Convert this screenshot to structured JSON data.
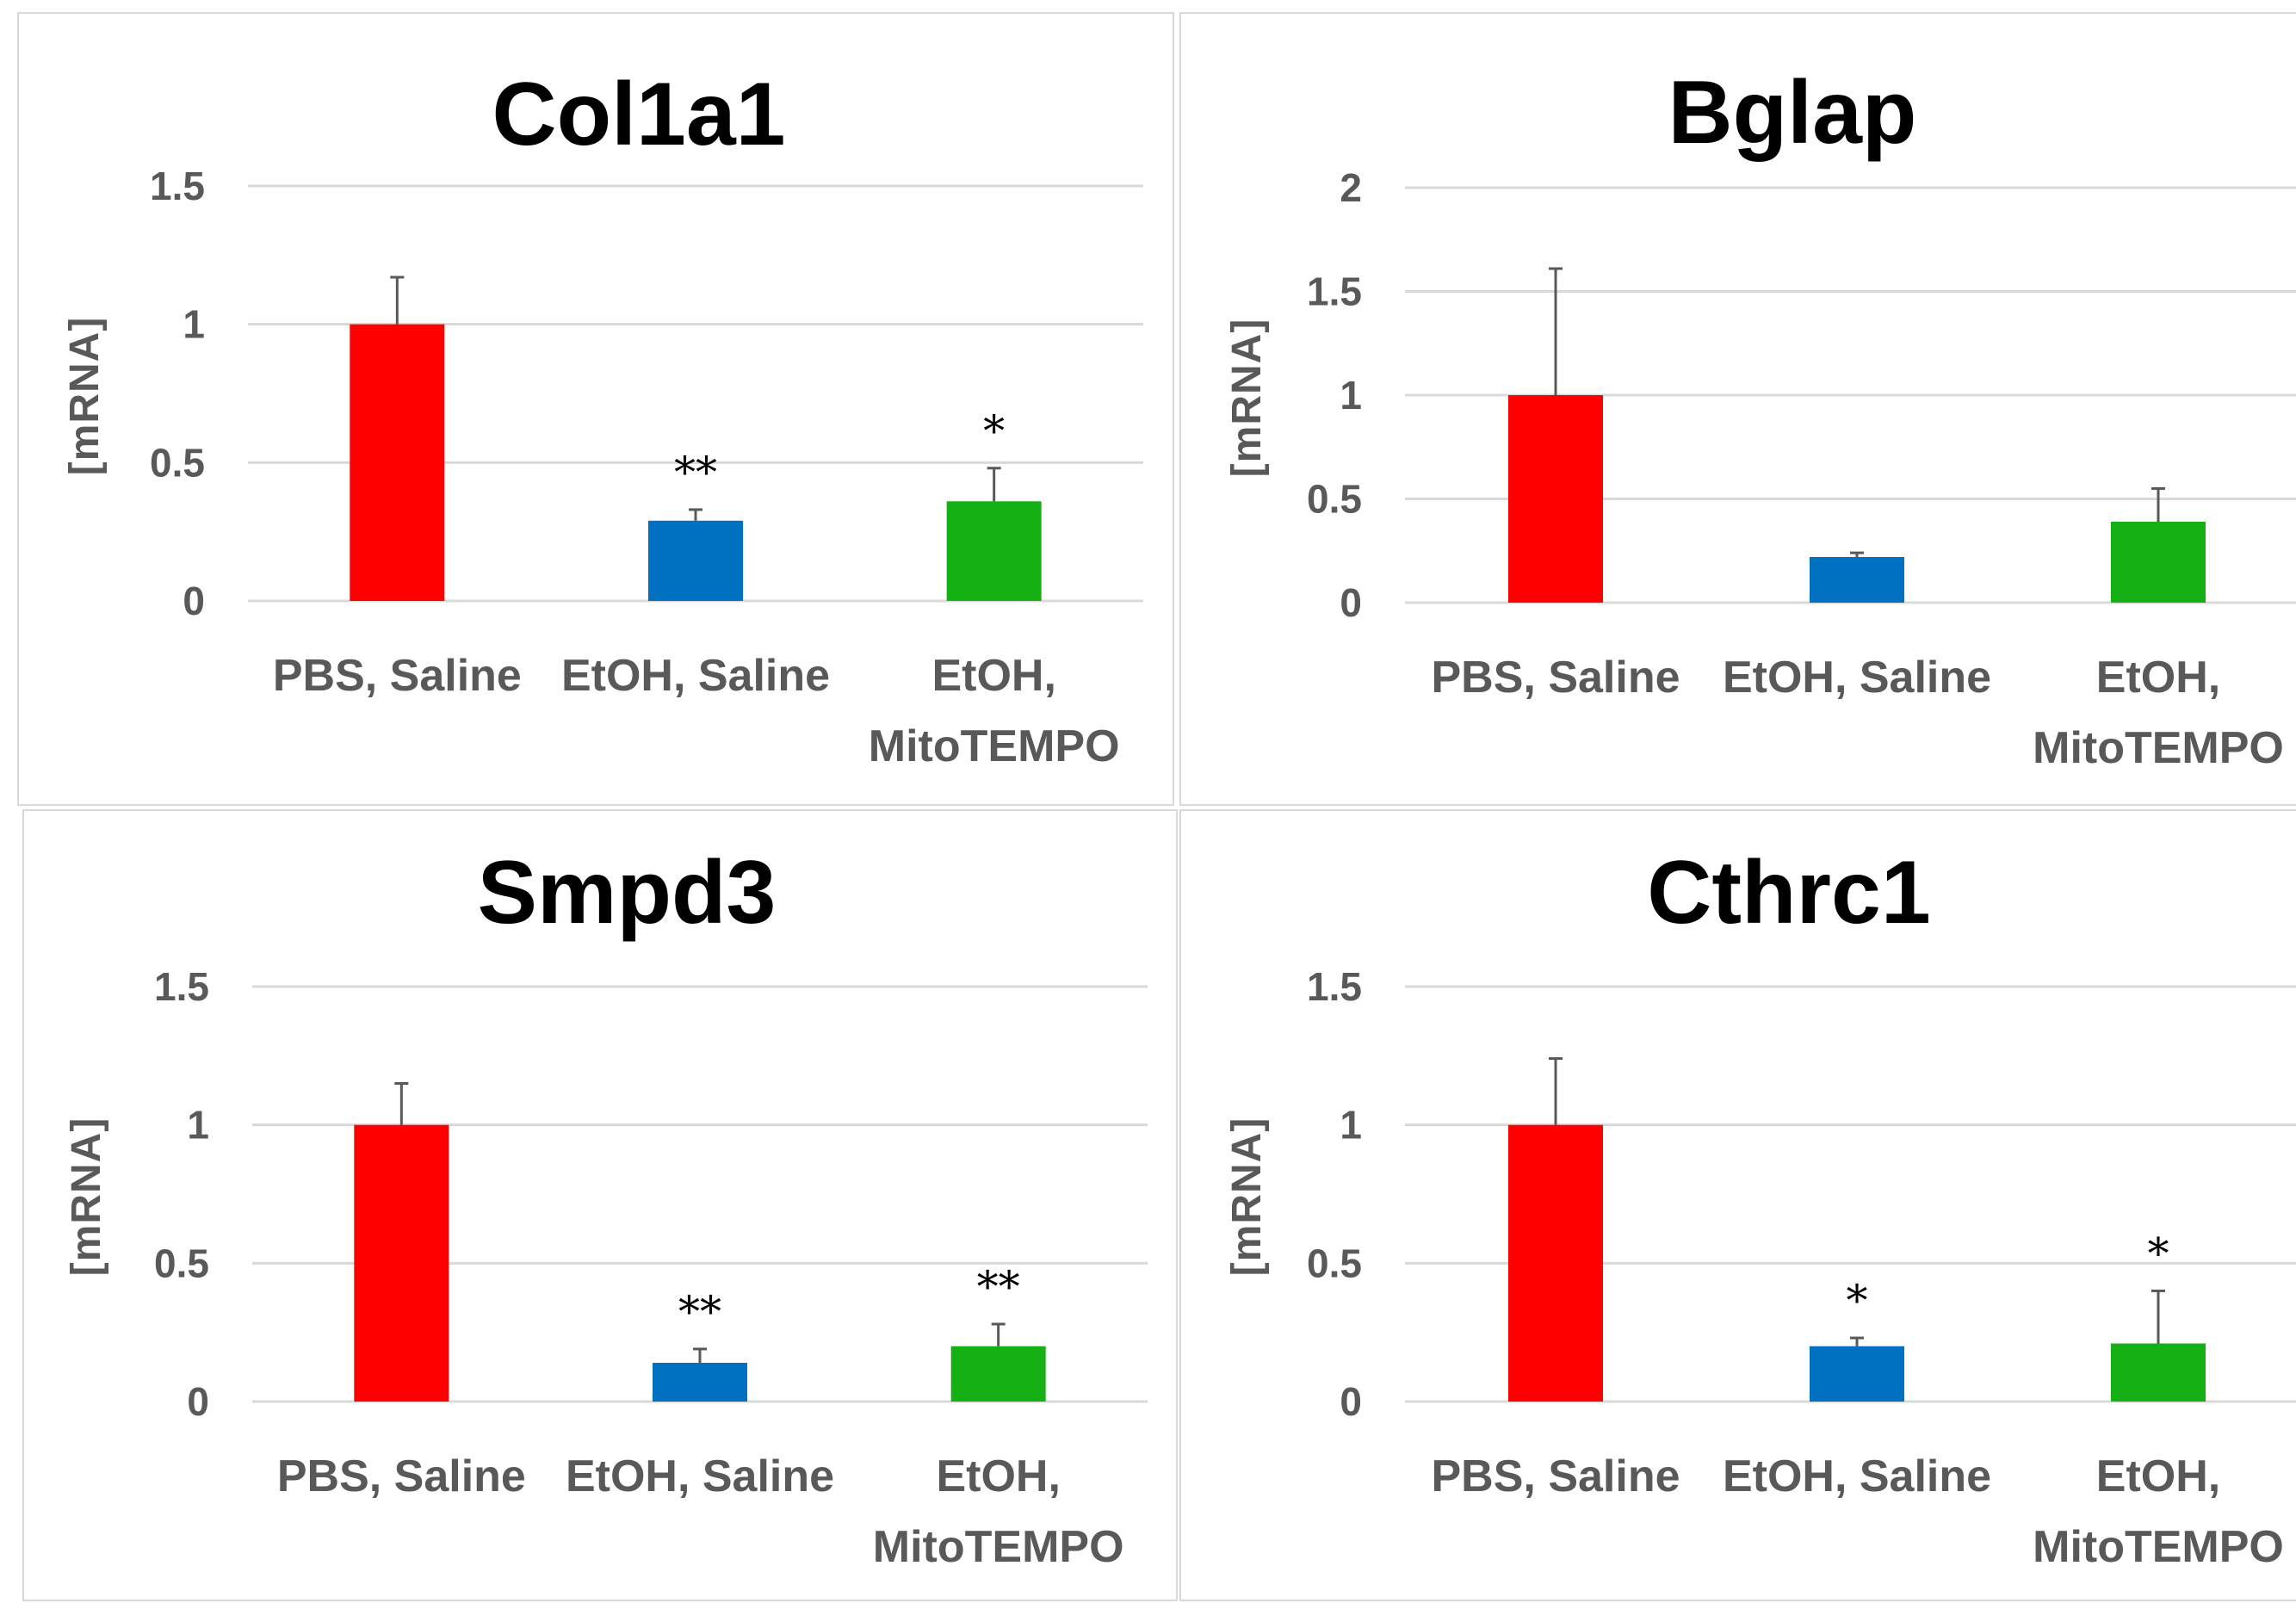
{
  "chart_data": [
    {
      "type": "bar",
      "title": "Col1a1",
      "ylabel": "[mRNA]",
      "xlabel": "",
      "categories": [
        "PBS, Saline",
        "EtOH, Saline",
        "EtOH, MitoTEMPO"
      ],
      "values": [
        1.0,
        0.29,
        0.36
      ],
      "errors": [
        0.17,
        0.04,
        0.12
      ],
      "significance": [
        "",
        "**",
        "*"
      ],
      "colors": [
        "#ff0000",
        "#0070c0",
        "#14b014"
      ],
      "ylim": [
        0,
        1.5
      ],
      "yticks": [
        "0",
        "0.5",
        "1",
        "1.5"
      ],
      "grid": true
    },
    {
      "type": "bar",
      "title": "Bglap",
      "ylabel": "[mRNA]",
      "xlabel": "",
      "categories": [
        "PBS, Saline",
        "EtOH, Saline",
        "EtOH, MitoTEMPO"
      ],
      "values": [
        1.0,
        0.22,
        0.39
      ],
      "errors": [
        0.61,
        0.02,
        0.16
      ],
      "significance": [
        "",
        "",
        ""
      ],
      "colors": [
        "#ff0000",
        "#0070c0",
        "#14b014"
      ],
      "ylim": [
        0,
        2
      ],
      "yticks": [
        "0",
        "0.5",
        "1",
        "1.5",
        "2"
      ],
      "grid": true
    },
    {
      "type": "bar",
      "title": "Smpd3",
      "ylabel": "[mRNA]",
      "xlabel": "",
      "categories": [
        "PBS, Saline",
        "EtOH, Saline",
        "EtOH, MitoTEMPO"
      ],
      "values": [
        1.0,
        0.14,
        0.2
      ],
      "errors": [
        0.15,
        0.05,
        0.08
      ],
      "significance": [
        "",
        "**",
        "**"
      ],
      "colors": [
        "#ff0000",
        "#0070c0",
        "#14b014"
      ],
      "ylim": [
        0,
        1.5
      ],
      "yticks": [
        "0",
        "0.5",
        "1",
        "1.5"
      ],
      "grid": true
    },
    {
      "type": "bar",
      "title": "Cthrc1",
      "ylabel": "[mRNA]",
      "xlabel": "",
      "categories": [
        "PBS, Saline",
        "EtOH, Saline",
        "EtOH, MitoTEMPO"
      ],
      "values": [
        1.0,
        0.2,
        0.21
      ],
      "errors": [
        0.24,
        0.03,
        0.19
      ],
      "significance": [
        "",
        "*",
        "*"
      ],
      "colors": [
        "#ff0000",
        "#0070c0",
        "#14b014"
      ],
      "ylim": [
        0,
        1.5
      ],
      "yticks": [
        "0",
        "0.5",
        "1",
        "1.5"
      ],
      "grid": true
    }
  ]
}
